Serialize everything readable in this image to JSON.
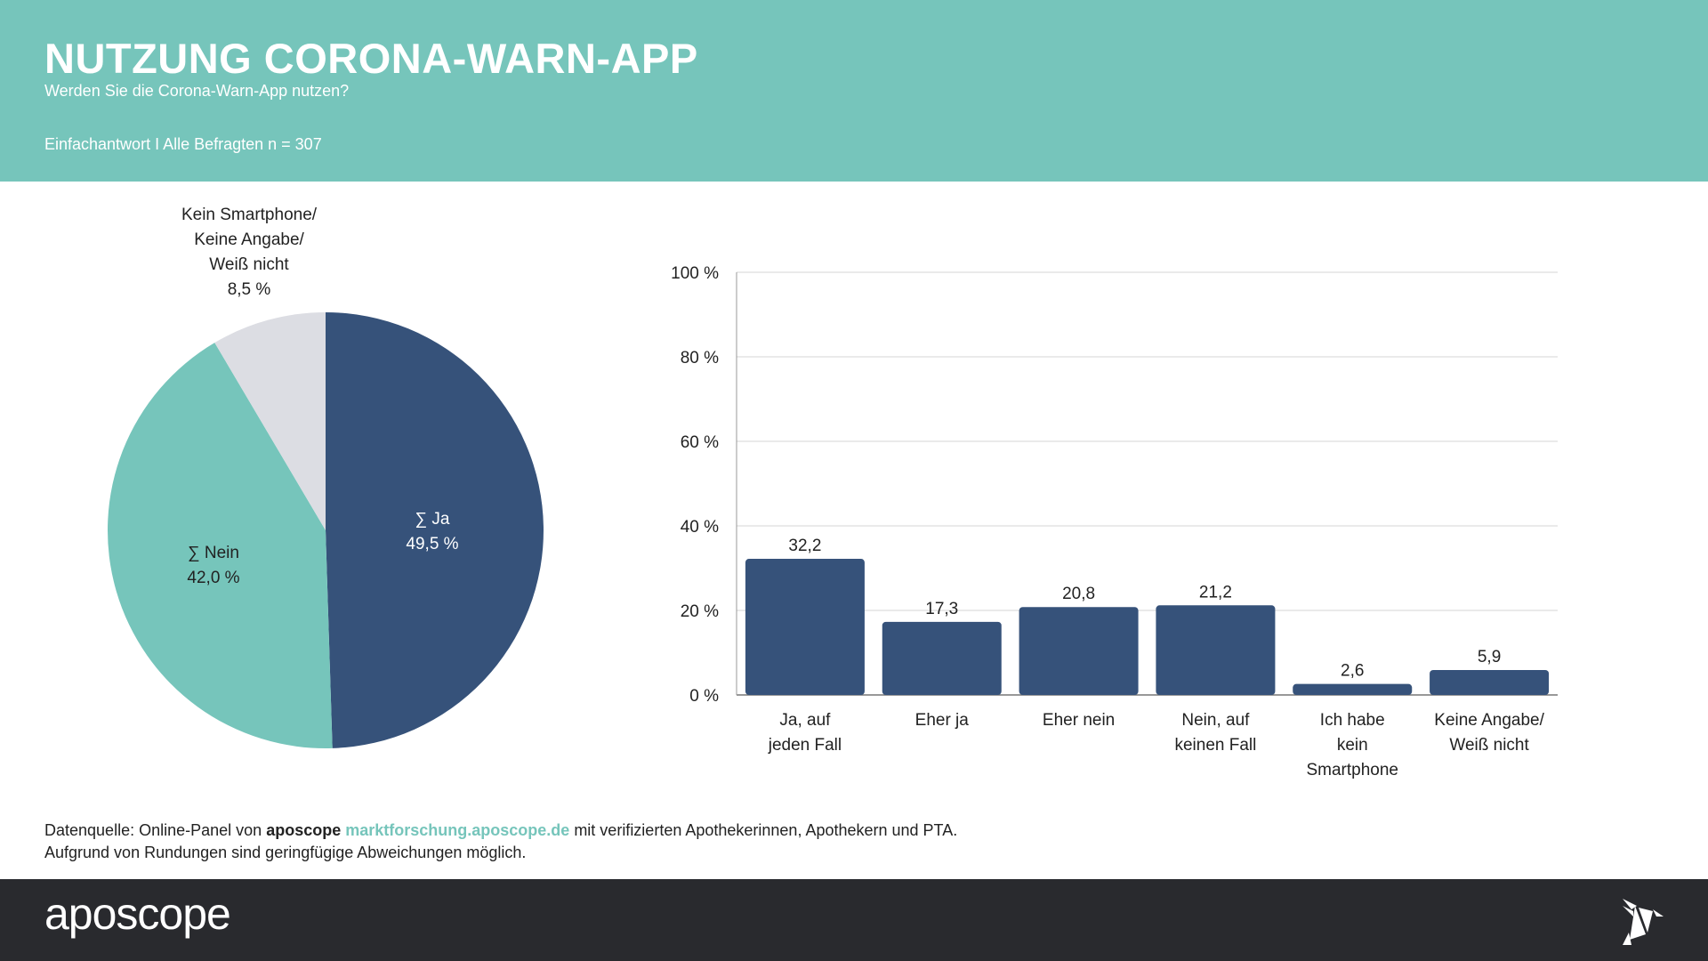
{
  "header": {
    "title": "NUTZUNG CORONA-WARN-APP",
    "subtitle": "Werden Sie die Corona-Warn-App nutzen?",
    "base": "Einfachantwort I Alle Befragten n = 307"
  },
  "colors": {
    "teal": "#76c5bb",
    "navy": "#36527a",
    "grey": "#dcdde3",
    "footer": "#292a2e"
  },
  "chart_data": [
    {
      "type": "pie",
      "slices": [
        {
          "label": "∑ Ja",
          "value": 49.5,
          "value_label": "49,5 %",
          "color": "#36527a"
        },
        {
          "label": "∑ Nein",
          "value": 42.0,
          "value_label": "42,0 %",
          "color": "#76c5bb"
        },
        {
          "label": "Kein Smartphone/ Keine Angabe/ Weiß nicht",
          "label_lines": [
            "Kein Smartphone/",
            "Keine Angabe/",
            "Weiß nicht"
          ],
          "value": 8.5,
          "value_label": "8,5 %",
          "color": "#dcdde3"
        }
      ]
    },
    {
      "type": "bar",
      "categories": [
        [
          "Ja, auf",
          "jeden Fall"
        ],
        [
          "Eher ja"
        ],
        [
          "Eher nein"
        ],
        [
          "Nein, auf",
          "keinen Fall"
        ],
        [
          "Ich habe",
          "kein",
          "Smartphone"
        ],
        [
          "Keine Angabe/",
          "Weiß nicht"
        ]
      ],
      "values": [
        32.2,
        17.3,
        20.8,
        21.2,
        2.6,
        5.9
      ],
      "value_labels": [
        "32,2",
        "17,3",
        "20,8",
        "21,2",
        "2,6",
        "5,9"
      ],
      "yticks": [
        0,
        20,
        40,
        60,
        80,
        100
      ],
      "ytick_labels": [
        "0 %",
        "20 %",
        "40 %",
        "60 %",
        "80 %",
        "100 %"
      ],
      "ylim": [
        0,
        100
      ],
      "grid": true
    }
  ],
  "source": {
    "prefix": "Datenquelle: Online-Panel von",
    "brand": "aposcope",
    "link": "marktforschung.aposcope.de",
    "suffix": "mit verifizierten Apothekerinnen, Apothekern und PTA.",
    "note": "Aufgrund von Rundungen sind geringfügige Abweichungen möglich."
  },
  "footer": {
    "logo": "aposcope"
  }
}
